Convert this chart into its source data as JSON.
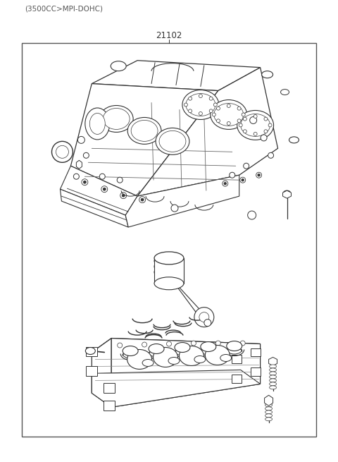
{
  "title_label": "21102",
  "subtitle_label": "(3500CC>MPI-DOHC)",
  "bg_color": "#ffffff",
  "border_color": "#555555",
  "line_color": "#333333",
  "title_fontsize": 8.5,
  "subtitle_fontsize": 7.5,
  "fig_width": 4.8,
  "fig_height": 6.55,
  "dpi": 100
}
